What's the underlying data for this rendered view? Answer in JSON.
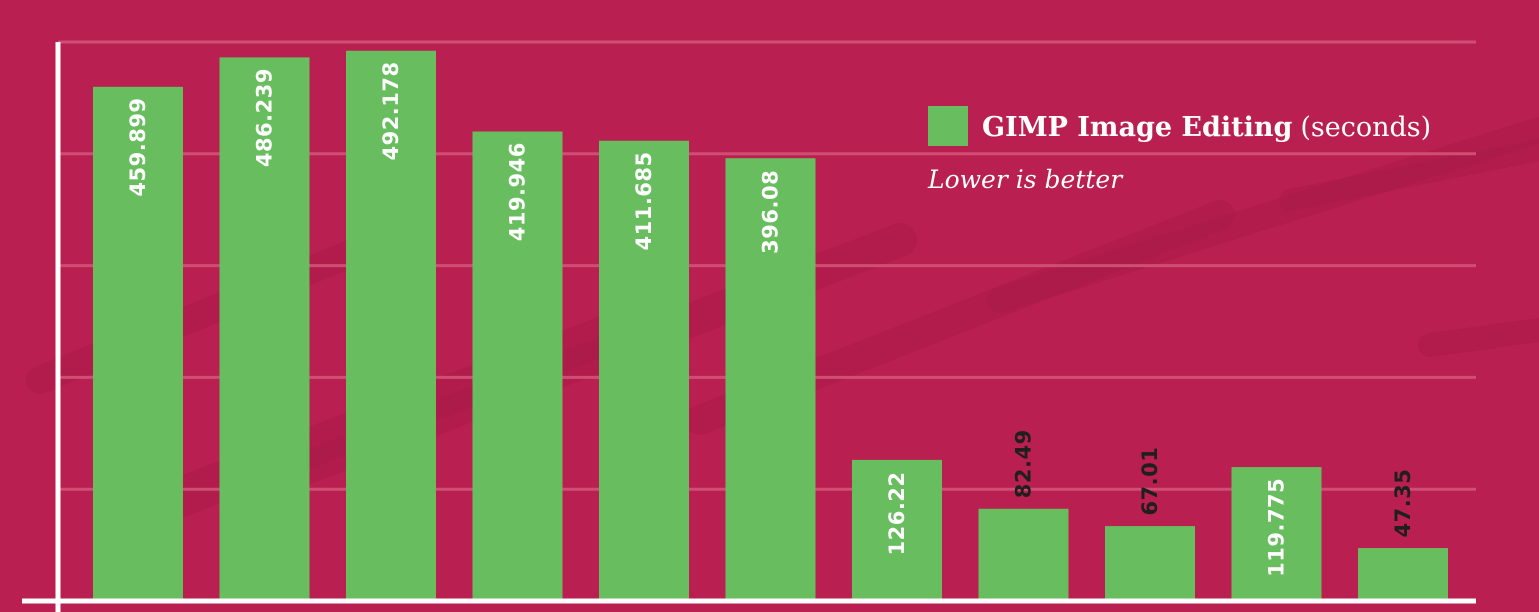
{
  "chart_data": {
    "type": "bar",
    "title": "",
    "xlabel": "",
    "ylabel": "",
    "ylim": [
      0,
      500
    ],
    "grid": true,
    "legend_placement": "top-right",
    "series": [
      {
        "name": "GIMP Image Editing",
        "values": [
          459.899,
          486.239,
          492.178,
          419.946,
          411.685,
          396.08,
          126.22,
          82.49,
          67.01,
          119.775,
          47.35
        ]
      }
    ],
    "value_labels": [
      "459.899",
      "486.239",
      "492.178",
      "419.946",
      "411.685",
      "396.08",
      "126.22",
      "82.49",
      "67.01",
      "119.775",
      "47.35"
    ],
    "legend": {
      "label_bold": "GIMP Image Editing",
      "label_unit": "(seconds)",
      "note": "Lower is better"
    }
  },
  "colors": {
    "background": "#b91f51",
    "bar": "#68bd5f",
    "gridline": "#cf4f72",
    "axis": "#ffffff",
    "label_inside": "#ffffff",
    "label_outside": "#1f1f1f"
  }
}
